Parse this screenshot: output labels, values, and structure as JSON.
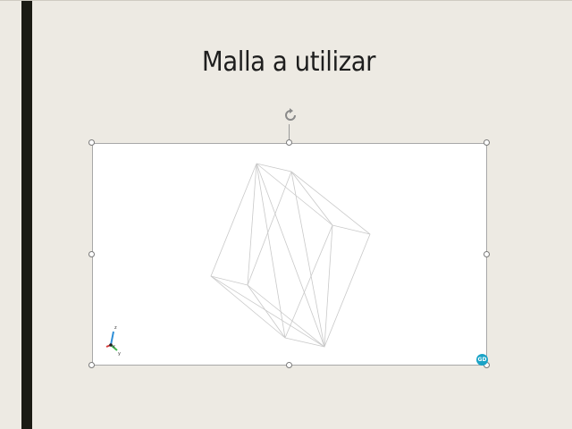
{
  "slide": {
    "title": "Malla a utilizar",
    "background_color": "#edeae3",
    "accent_bar_color": "#1b1b14"
  },
  "picture": {
    "content": "wireframe-mesh",
    "axis_labels": {
      "z": "z",
      "x": "x",
      "y": "y"
    }
  },
  "selection": {
    "rotate_icon": "rotate-icon",
    "collaborator_badge": "GD"
  }
}
